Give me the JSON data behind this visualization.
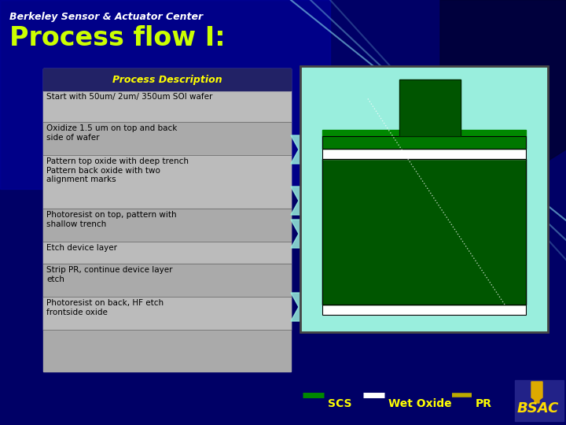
{
  "title": "Process flow I:",
  "header": "Berkeley Sensor & Actuator Center",
  "bg_dark": "#000055",
  "bg_mid": "#0000aa",
  "title_color": "#ccff00",
  "header_color": "#ffffff",
  "table_header": "Process Description",
  "table_rows": [
    "Start with 50um/ 2um/ 350um SOI wafer",
    "Oxidize 1.5 um on top and back\nside of wafer",
    "Pattern top oxide with deep trench\nPattern back oxide with two\nalignment marks",
    "Photoresist on top, pattern with\nshallow trench",
    "Etch device layer",
    "Strip PR, continue device layer\netch",
    "Photoresist on back, HF etch\nfrontside oxide"
  ],
  "legend_labels": [
    "SCS",
    "Wet Oxide",
    "PR"
  ],
  "legend_colors": [
    "#008800",
    "#ffffff",
    "#bbaa00"
  ],
  "diagram_bg": "#99eedd",
  "scs_dark": "#004400",
  "scs_mid": "#006600",
  "scs_bright": "#007700",
  "oxide_color": "#ffffff",
  "pr_color": "#005500",
  "table_bg": "#aaaaaa",
  "table_hdr_bg": "#222266",
  "row_colors": [
    "#bbbbbb",
    "#aaaaaa"
  ]
}
